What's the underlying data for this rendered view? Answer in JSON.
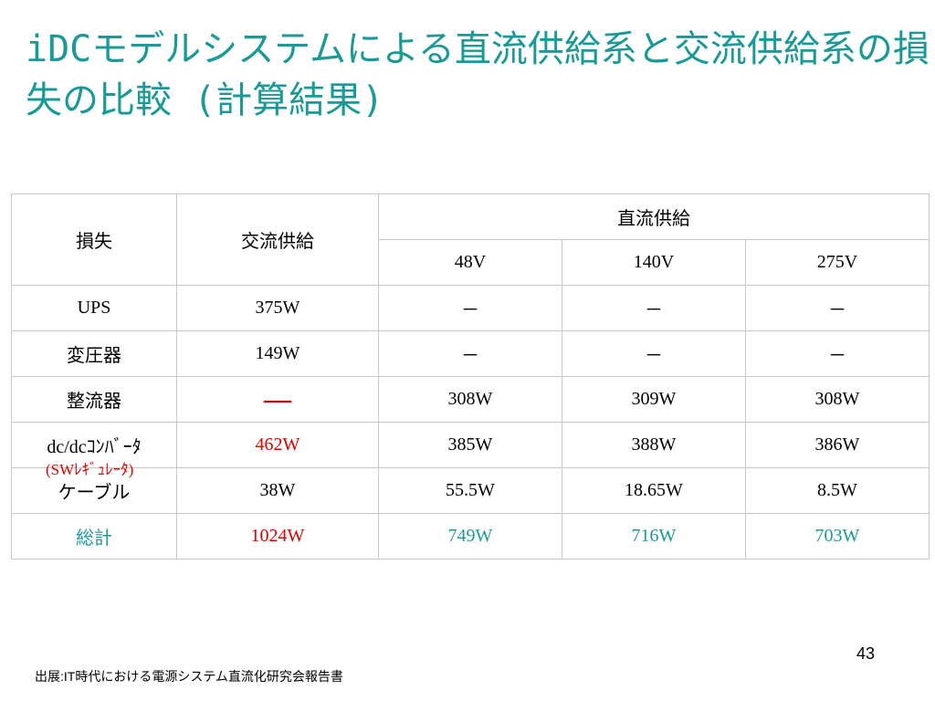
{
  "title": "iDCモデルシステムによる直流供給系と交流供給系の損失の比較 (計算結果)",
  "table": {
    "header": {
      "loss": "損失",
      "ac": "交流供給",
      "dc": "直流供給",
      "dc_voltages": [
        "48V",
        "140V",
        "275V"
      ]
    },
    "rows": [
      [
        "UPS",
        "375W",
        "－",
        "－",
        "－"
      ],
      [
        "変圧器",
        "149W",
        "－",
        "－",
        "－"
      ],
      [
        "整流器",
        "―",
        "308W",
        "309W",
        "308W"
      ],
      [
        "dc/dcｺﾝﾊﾞｰﾀ",
        "462W",
        "385W",
        "388W",
        "386W"
      ],
      [
        "ケーブル",
        "38W",
        "55.5W",
        "18.65W",
        "8.5W"
      ],
      [
        "総計",
        "1024W",
        "749W",
        "716W",
        "703W"
      ]
    ],
    "dcdc_note": "(SWﾚｷﾞｭﾚｰﾀ)"
  },
  "page_number": "43",
  "source": "出展:IT時代における電源システム直流化研究会報告書"
}
